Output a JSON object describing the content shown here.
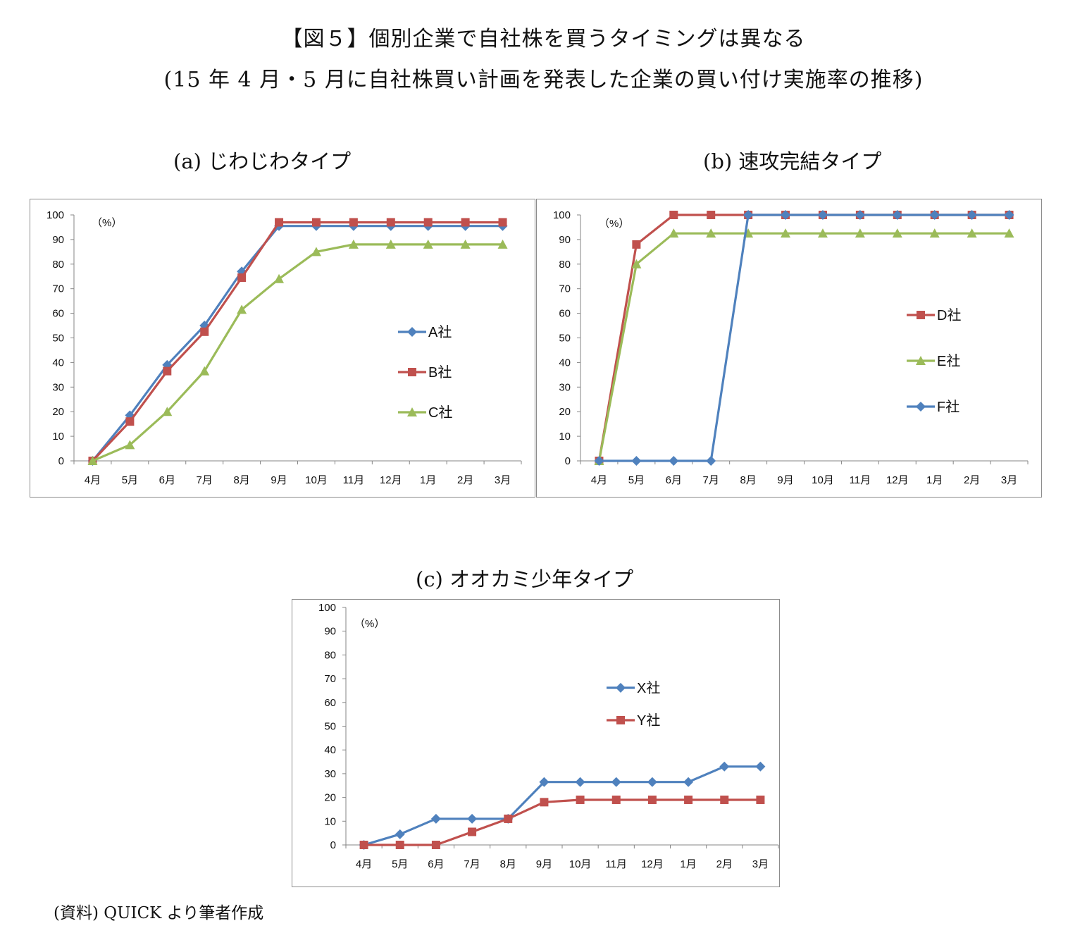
{
  "header": {
    "title": "【図５】個別企業で自社株を買うタイミングは異なる",
    "subtitle": "(15 年 4 月・5 月に自社株買い計画を発表した企業の買い付け実施率の推移)"
  },
  "source": "(資料) QUICK より筆者作成",
  "colors": {
    "blue": "#4f81bd",
    "red": "#c0504d",
    "green": "#9bbb59"
  },
  "chart_data": [
    {
      "type": "line",
      "title": "(a) じわじわタイプ",
      "unit_label": "（%）",
      "ylim": [
        0,
        100
      ],
      "yticks": [
        "0",
        "10",
        "20",
        "30",
        "40",
        "50",
        "60",
        "70",
        "80",
        "90",
        "100"
      ],
      "categories": [
        "4月",
        "5月",
        "6月",
        "7月",
        "8月",
        "9月",
        "10月",
        "11月",
        "12月",
        "1月",
        "2月",
        "3月"
      ],
      "series": [
        {
          "name": "A社",
          "color": "#4f81bd",
          "marker": "diamond",
          "values": [
            0,
            18.5,
            39,
            55,
            77,
            95.5,
            95.5,
            95.5,
            95.5,
            95.5,
            95.5,
            95.5
          ]
        },
        {
          "name": "B社",
          "color": "#c0504d",
          "marker": "square",
          "values": [
            0,
            16,
            36.5,
            52.5,
            74.5,
            97,
            97,
            97,
            97,
            97,
            97,
            97
          ]
        },
        {
          "name": "C社",
          "color": "#9bbb59",
          "marker": "triangle",
          "values": [
            0,
            6.5,
            20,
            36.5,
            61.5,
            74,
            85,
            88,
            88,
            88,
            88,
            88
          ]
        }
      ],
      "legend_position": "right",
      "grid": false
    },
    {
      "type": "line",
      "title": "(b) 速攻完結タイプ",
      "unit_label": "（%）",
      "ylim": [
        0,
        100
      ],
      "yticks": [
        "0",
        "10",
        "20",
        "30",
        "40",
        "50",
        "60",
        "70",
        "80",
        "90",
        "100"
      ],
      "categories": [
        "4月",
        "5月",
        "6月",
        "7月",
        "8月",
        "9月",
        "10月",
        "11月",
        "12月",
        "1月",
        "2月",
        "3月"
      ],
      "series": [
        {
          "name": "D社",
          "color": "#c0504d",
          "marker": "square",
          "values": [
            0,
            88,
            100,
            100,
            100,
            100,
            100,
            100,
            100,
            100,
            100,
            100
          ]
        },
        {
          "name": "E社",
          "color": "#9bbb59",
          "marker": "triangle",
          "values": [
            0,
            80,
            92.5,
            92.5,
            92.5,
            92.5,
            92.5,
            92.5,
            92.5,
            92.5,
            92.5,
            92.5
          ]
        },
        {
          "name": "F社",
          "color": "#4f81bd",
          "marker": "diamond",
          "values": [
            0,
            0,
            0,
            0,
            100,
            100,
            100,
            100,
            100,
            100,
            100,
            100
          ]
        }
      ],
      "legend_position": "right",
      "grid": false
    },
    {
      "type": "line",
      "title": "(c) オオカミ少年タイプ",
      "unit_label": "（%）",
      "ylim": [
        0,
        100
      ],
      "yticks": [
        "0",
        "10",
        "20",
        "30",
        "40",
        "50",
        "60",
        "70",
        "80",
        "90",
        "100"
      ],
      "categories": [
        "4月",
        "5月",
        "6月",
        "7月",
        "8月",
        "9月",
        "10月",
        "11月",
        "12月",
        "1月",
        "2月",
        "3月"
      ],
      "series": [
        {
          "name": "X社",
          "color": "#4f81bd",
          "marker": "diamond",
          "values": [
            0,
            4.5,
            11,
            11,
            11,
            26.5,
            26.5,
            26.5,
            26.5,
            26.5,
            33,
            33
          ]
        },
        {
          "name": "Y社",
          "color": "#c0504d",
          "marker": "square",
          "values": [
            0,
            0,
            0,
            5.5,
            11,
            18,
            19,
            19,
            19,
            19,
            19,
            19
          ]
        }
      ],
      "legend_position": "right",
      "grid": false
    }
  ]
}
